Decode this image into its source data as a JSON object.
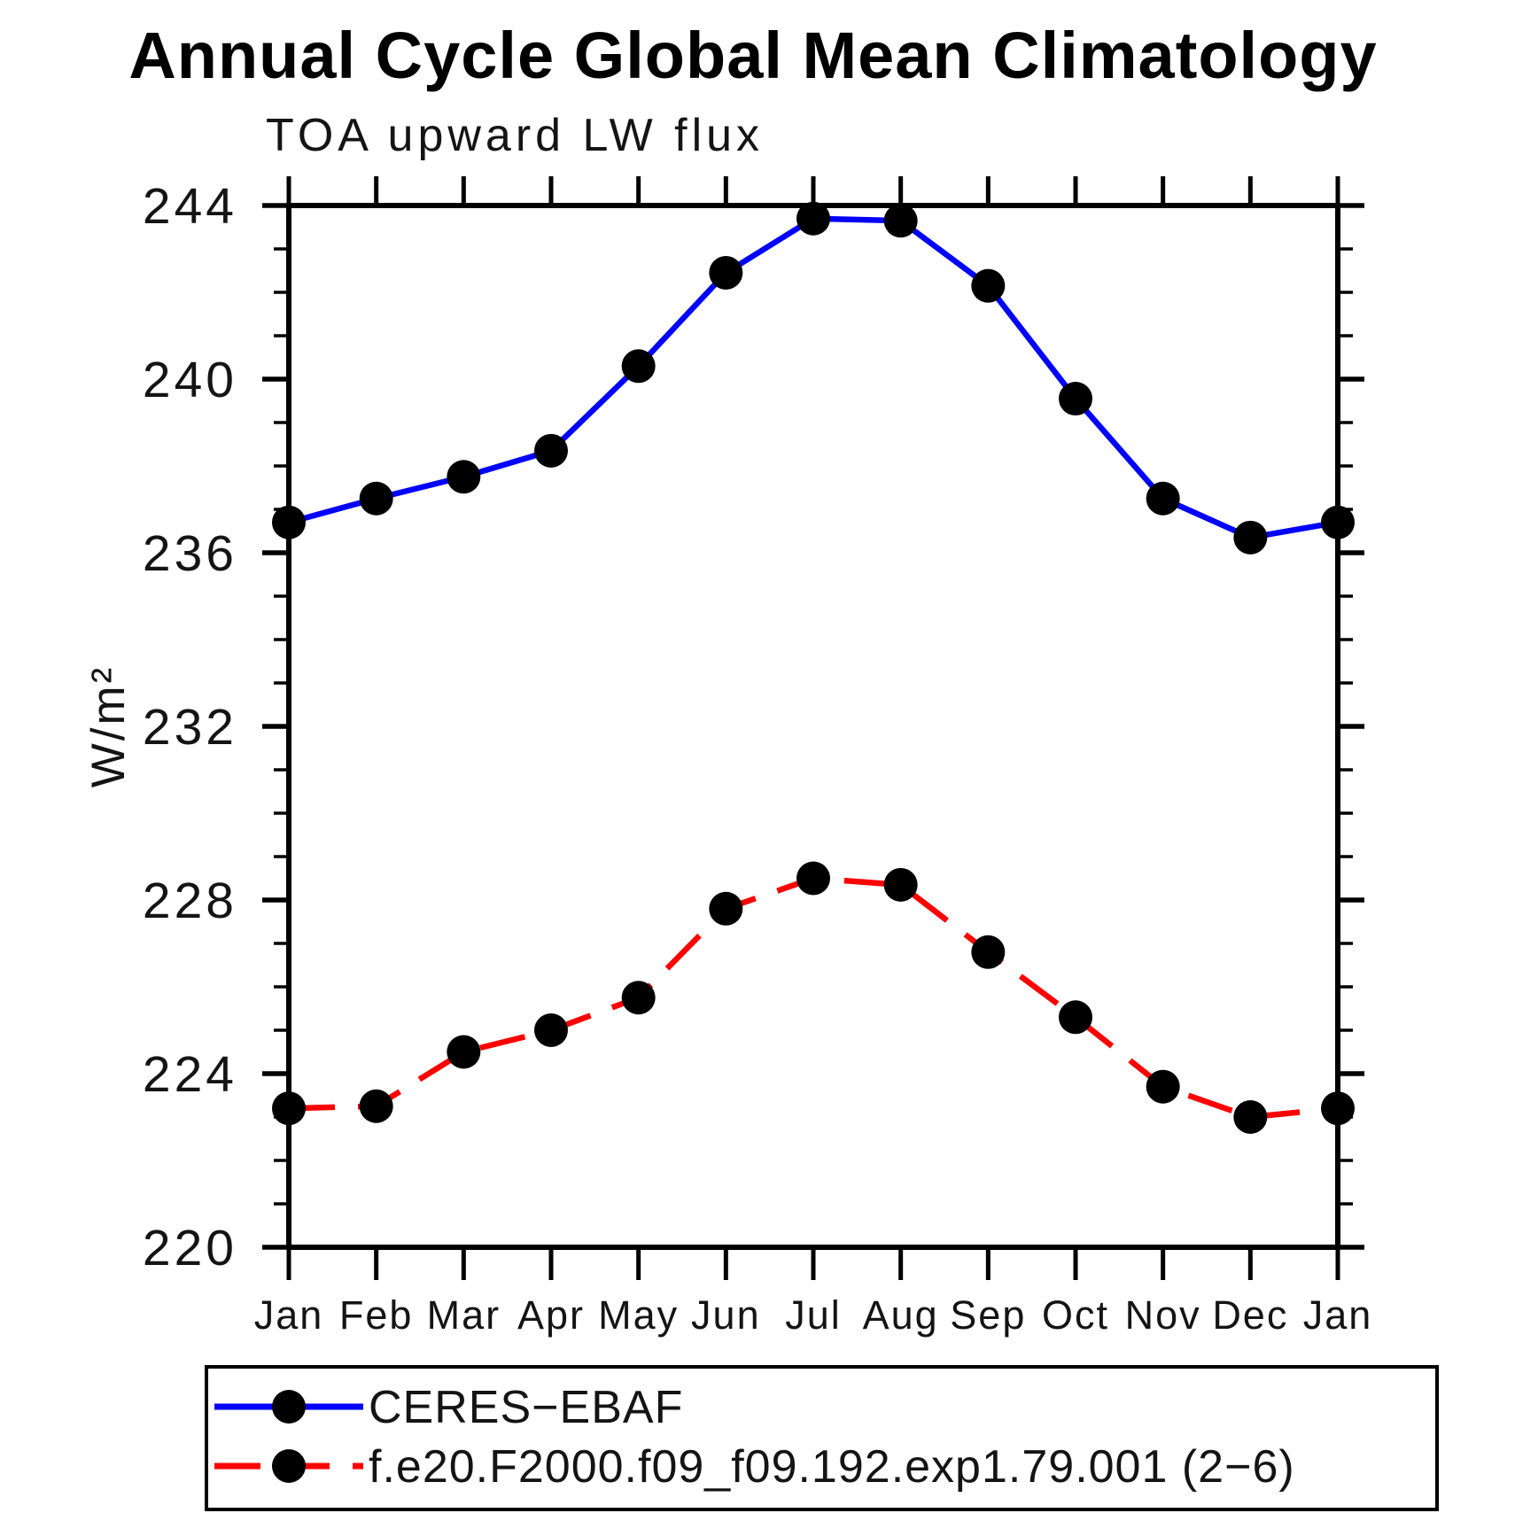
{
  "title": "Annual Cycle Global Mean Climatology",
  "subtitle": "TOA upward LW flux",
  "ylabel": "W/m²",
  "colors": {
    "obs_line": "#0000ff",
    "model_line": "#ff0000",
    "marker": "#000000",
    "axis": "#000000"
  },
  "legend": {
    "items": [
      {
        "label": "CERES−EBAF",
        "line_style": "solid",
        "color": "#0000ff",
        "marker": "filled-circle"
      },
      {
        "label": "f.e20.F2000.f09_f09.192.exp1.79.001 (2−6)",
        "line_style": "dashed",
        "color": "#ff0000",
        "marker": "filled-circle"
      }
    ]
  },
  "chart_data": {
    "type": "line",
    "title": "Annual Cycle Global Mean Climatology",
    "subtitle": "TOA upward LW flux",
    "xlabel": "",
    "ylabel": "W/m²",
    "categories": [
      "Jan",
      "Feb",
      "Mar",
      "Apr",
      "May",
      "Jun",
      "Jul",
      "Aug",
      "Sep",
      "Oct",
      "Nov",
      "Dec",
      "Jan"
    ],
    "series": [
      {
        "name": "CERES−EBAF",
        "color": "#0000ff",
        "line_style": "solid",
        "marker": "filled-circle",
        "values": [
          236.7,
          237.25,
          237.75,
          238.35,
          240.3,
          242.45,
          243.7,
          243.65,
          242.15,
          239.55,
          237.25,
          236.35,
          236.7
        ]
      },
      {
        "name": "f.e20.F2000.f09_f09.192.exp1.79.001 (2−6)",
        "color": "#ff0000",
        "line_style": "dashed",
        "marker": "filled-circle",
        "values": [
          223.2,
          223.25,
          224.5,
          225.0,
          225.75,
          227.8,
          228.5,
          228.35,
          226.8,
          225.3,
          223.7,
          223.0,
          223.2
        ]
      }
    ],
    "ylim": [
      220,
      244
    ],
    "ytick_major_step": 4,
    "ytick_minor_step": 1,
    "ytick_labels": [
      "220",
      "224",
      "228",
      "232",
      "236",
      "240",
      "244"
    ],
    "grid": false,
    "legend_position": "bottom"
  }
}
